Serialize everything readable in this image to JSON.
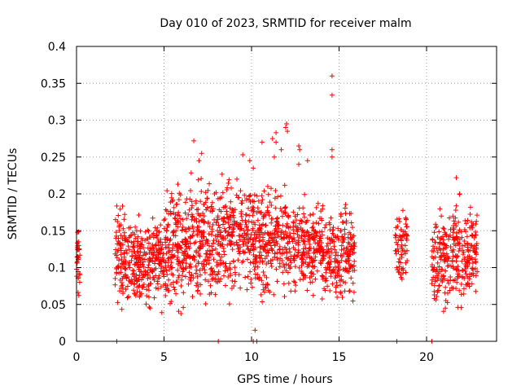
{
  "chart_data": {
    "type": "scatter",
    "title": "Day 010 of 2023, SRMTID for receiver malm",
    "xlabel": "GPS time / hours",
    "ylabel": "SRMTID / TECUs",
    "xlim": [
      0,
      24
    ],
    "ylim": [
      0,
      0.4
    ],
    "x_ticks": [
      0,
      5,
      10,
      15,
      20
    ],
    "x_tick_labels": [
      "0",
      "5",
      "10",
      "15",
      "20"
    ],
    "y_ticks": [
      0,
      0.05,
      0.1,
      0.15,
      0.2,
      0.25,
      0.3,
      0.35,
      0.4
    ],
    "y_tick_labels": [
      "0",
      "0.05",
      "0.1",
      "0.15",
      "0.2",
      "0.25",
      "0.3",
      "0.35",
      "0.4"
    ],
    "grid": true,
    "marker": "+",
    "color": "#ff0000",
    "clusters": [
      {
        "x0": 0.0,
        "x1": 0.2,
        "ymin": 0.06,
        "ymax": 0.155,
        "count": 30
      },
      {
        "x0": 2.2,
        "x1": 3.2,
        "ymin": 0.04,
        "ymax": 0.19,
        "count": 120
      },
      {
        "x0": 3.2,
        "x1": 5.0,
        "ymin": 0.035,
        "ymax": 0.18,
        "count": 240
      },
      {
        "x0": 5.0,
        "x1": 6.5,
        "ymin": 0.035,
        "ymax": 0.22,
        "count": 200
      },
      {
        "x0": 6.5,
        "x1": 8.3,
        "ymin": 0.04,
        "ymax": 0.235,
        "count": 230
      },
      {
        "x0": 8.3,
        "x1": 10.2,
        "ymin": 0.05,
        "ymax": 0.24,
        "count": 230
      },
      {
        "x0": 10.2,
        "x1": 12.0,
        "ymin": 0.05,
        "ymax": 0.23,
        "count": 220
      },
      {
        "x0": 12.0,
        "x1": 14.0,
        "ymin": 0.055,
        "ymax": 0.2,
        "count": 230
      },
      {
        "x0": 14.0,
        "x1": 15.9,
        "ymin": 0.04,
        "ymax": 0.2,
        "count": 220
      },
      {
        "x0": 18.2,
        "x1": 18.9,
        "ymin": 0.07,
        "ymax": 0.19,
        "count": 70
      },
      {
        "x0": 20.3,
        "x1": 21.2,
        "ymin": 0.025,
        "ymax": 0.2,
        "count": 110
      },
      {
        "x0": 21.2,
        "x1": 22.9,
        "ymin": 0.04,
        "ymax": 0.2,
        "count": 190
      }
    ],
    "outliers": [
      {
        "x": 14.6,
        "y": 0.36
      },
      {
        "x": 14.6,
        "y": 0.334
      },
      {
        "x": 14.6,
        "y": 0.26
      },
      {
        "x": 14.6,
        "y": 0.25
      },
      {
        "x": 12.0,
        "y": 0.295
      },
      {
        "x": 11.95,
        "y": 0.29
      },
      {
        "x": 12.05,
        "y": 0.285
      },
      {
        "x": 11.4,
        "y": 0.283
      },
      {
        "x": 11.4,
        "y": 0.27
      },
      {
        "x": 11.2,
        "y": 0.275
      },
      {
        "x": 11.7,
        "y": 0.26
      },
      {
        "x": 11.3,
        "y": 0.25
      },
      {
        "x": 10.6,
        "y": 0.27
      },
      {
        "x": 9.5,
        "y": 0.253
      },
      {
        "x": 6.7,
        "y": 0.272
      },
      {
        "x": 7.15,
        "y": 0.255
      },
      {
        "x": 7.0,
        "y": 0.245
      },
      {
        "x": 12.7,
        "y": 0.265
      },
      {
        "x": 12.75,
        "y": 0.26
      },
      {
        "x": 12.7,
        "y": 0.24
      },
      {
        "x": 10.1,
        "y": 0.235
      },
      {
        "x": 9.9,
        "y": 0.245
      },
      {
        "x": 13.2,
        "y": 0.245
      },
      {
        "x": 21.7,
        "y": 0.222
      },
      {
        "x": 10.2,
        "y": 0.015
      },
      {
        "x": 4.2,
        "y": 0.045
      }
    ],
    "zero_points": [
      {
        "x": 2.3,
        "y": 0
      },
      {
        "x": 8.1,
        "y": 0
      },
      {
        "x": 10.1,
        "y": 0
      },
      {
        "x": 10.3,
        "y": 0
      },
      {
        "x": 18.3,
        "y": 0
      },
      {
        "x": 20.3,
        "y": 0
      }
    ]
  }
}
